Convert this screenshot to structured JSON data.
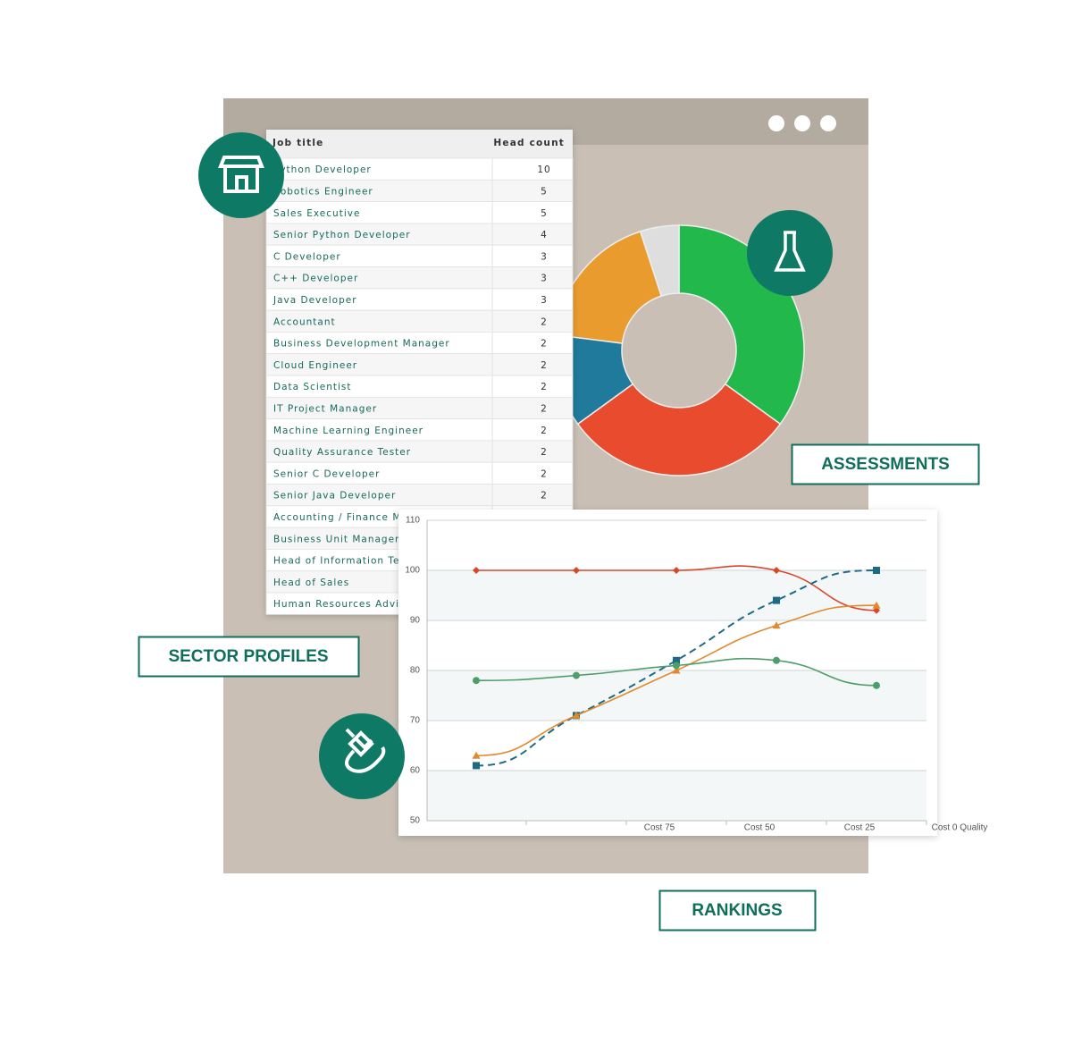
{
  "labels": {
    "sector_profiles": "SECTOR PROFILES",
    "assessments": "ASSESSMENTS",
    "rankings": "RANKINGS"
  },
  "table": {
    "header": [
      "Job title",
      "Head count"
    ],
    "rows": [
      [
        "Python Developer",
        10
      ],
      [
        "Robotics Engineer",
        5
      ],
      [
        "Sales Executive",
        5
      ],
      [
        "Senior Python Developer",
        4
      ],
      [
        "C Developer",
        3
      ],
      [
        "C++ Developer",
        3
      ],
      [
        "Java Developer",
        3
      ],
      [
        "Accountant",
        2
      ],
      [
        "Business Development Manager",
        2
      ],
      [
        "Cloud Engineer",
        2
      ],
      [
        "Data Scientist",
        2
      ],
      [
        "IT Project Manager",
        2
      ],
      [
        "Machine Learning Engineer",
        2
      ],
      [
        "Quality Assurance Tester",
        2
      ],
      [
        "Senior C Developer",
        2
      ],
      [
        "Senior Java Developer",
        2
      ],
      [
        "Accounting / Finance Man"
      ],
      [
        "Business Unit Manager"
      ],
      [
        "Head of Information Tech"
      ],
      [
        "Head of Sales"
      ],
      [
        "Human Resources Advisor"
      ]
    ]
  },
  "chart_data": [
    {
      "type": "pie",
      "values": [
        35,
        30,
        12,
        18,
        5
      ],
      "colors": [
        "#22b84c",
        "#e84b2e",
        "#1f7a9c",
        "#ea9b2e",
        "#dedede"
      ]
    },
    {
      "type": "line",
      "categories": [
        null,
        "Cost 75",
        "Cost 50",
        "Cost 25",
        "Cost 0 Quality"
      ],
      "series": [
        {
          "color": "#d9472b",
          "values": [
            100,
            100,
            100,
            100,
            92
          ],
          "marker": "diamond",
          "dashed": false
        },
        {
          "color": "#1d6a85",
          "values": [
            61,
            71,
            82,
            94,
            100
          ],
          "marker": "square",
          "dashed": true
        },
        {
          "color": "#e08a2e",
          "values": [
            63,
            71,
            80,
            89,
            93
          ],
          "marker": "triangle",
          "dashed": false
        },
        {
          "color": "#4f9e6a",
          "values": [
            78,
            79,
            81,
            82,
            77
          ],
          "marker": "circle",
          "dashed": false
        }
      ],
      "ylim": [
        50,
        110
      ],
      "yticks": [
        50,
        60,
        70,
        80,
        90,
        100,
        110
      ],
      "grid": true
    }
  ]
}
